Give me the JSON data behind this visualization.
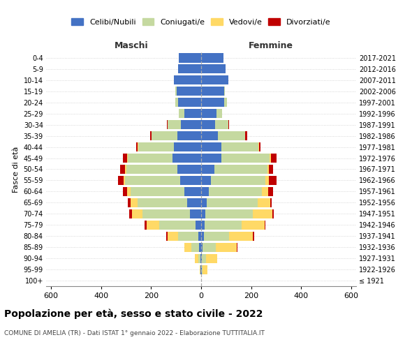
{
  "age_groups": [
    "100+",
    "95-99",
    "90-94",
    "85-89",
    "80-84",
    "75-79",
    "70-74",
    "65-69",
    "60-64",
    "55-59",
    "50-54",
    "45-49",
    "40-44",
    "35-39",
    "30-34",
    "25-29",
    "20-24",
    "15-19",
    "10-14",
    "5-9",
    "0-4"
  ],
  "birth_years": [
    "≤ 1921",
    "1922-1926",
    "1927-1931",
    "1932-1936",
    "1937-1941",
    "1942-1946",
    "1947-1951",
    "1952-1956",
    "1957-1961",
    "1962-1966",
    "1967-1971",
    "1972-1976",
    "1977-1981",
    "1982-1986",
    "1987-1991",
    "1992-1996",
    "1997-2001",
    "2002-2006",
    "2007-2011",
    "2012-2016",
    "2017-2021"
  ],
  "maschi": {
    "celibi": [
      1,
      2,
      4,
      8,
      12,
      22,
      45,
      55,
      68,
      85,
      95,
      115,
      110,
      95,
      82,
      68,
      92,
      98,
      108,
      93,
      88
    ],
    "coniugati": [
      0,
      2,
      8,
      30,
      80,
      145,
      190,
      200,
      215,
      220,
      205,
      178,
      142,
      102,
      52,
      22,
      12,
      4,
      0,
      0,
      0
    ],
    "vedovi": [
      0,
      2,
      12,
      28,
      42,
      52,
      42,
      27,
      12,
      6,
      5,
      3,
      1,
      0,
      0,
      0,
      0,
      0,
      0,
      0,
      0
    ],
    "divorziati": [
      0,
      0,
      0,
      2,
      5,
      6,
      12,
      12,
      18,
      22,
      18,
      18,
      6,
      6,
      2,
      0,
      0,
      0,
      0,
      0,
      0
    ]
  },
  "femmine": {
    "nubili": [
      0,
      2,
      4,
      6,
      10,
      13,
      18,
      23,
      30,
      40,
      52,
      82,
      82,
      68,
      57,
      62,
      92,
      93,
      108,
      98,
      88
    ],
    "coniugate": [
      0,
      4,
      15,
      52,
      102,
      148,
      188,
      202,
      212,
      218,
      212,
      192,
      148,
      108,
      52,
      22,
      10,
      2,
      0,
      0,
      0
    ],
    "vedove": [
      0,
      18,
      45,
      85,
      95,
      92,
      78,
      52,
      27,
      12,
      6,
      5,
      2,
      1,
      0,
      0,
      0,
      0,
      0,
      0,
      0
    ],
    "divorziate": [
      0,
      0,
      0,
      2,
      5,
      5,
      6,
      6,
      18,
      32,
      18,
      22,
      6,
      6,
      2,
      0,
      0,
      0,
      0,
      0,
      0
    ]
  },
  "colors": {
    "celibi": "#4472C4",
    "coniugati": "#C5D9A0",
    "vedovi": "#FFD966",
    "divorziati": "#C00000"
  },
  "xlim": 620,
  "title": "Popolazione per età, sesso e stato civile - 2022",
  "subtitle": "COMUNE DI AMELIA (TR) - Dati ISTAT 1° gennaio 2022 - Elaborazione TUTTITALIA.IT",
  "ylabel_left": "Fasce di età",
  "xlabel_left": "Maschi",
  "xlabel_right": "Femmine"
}
